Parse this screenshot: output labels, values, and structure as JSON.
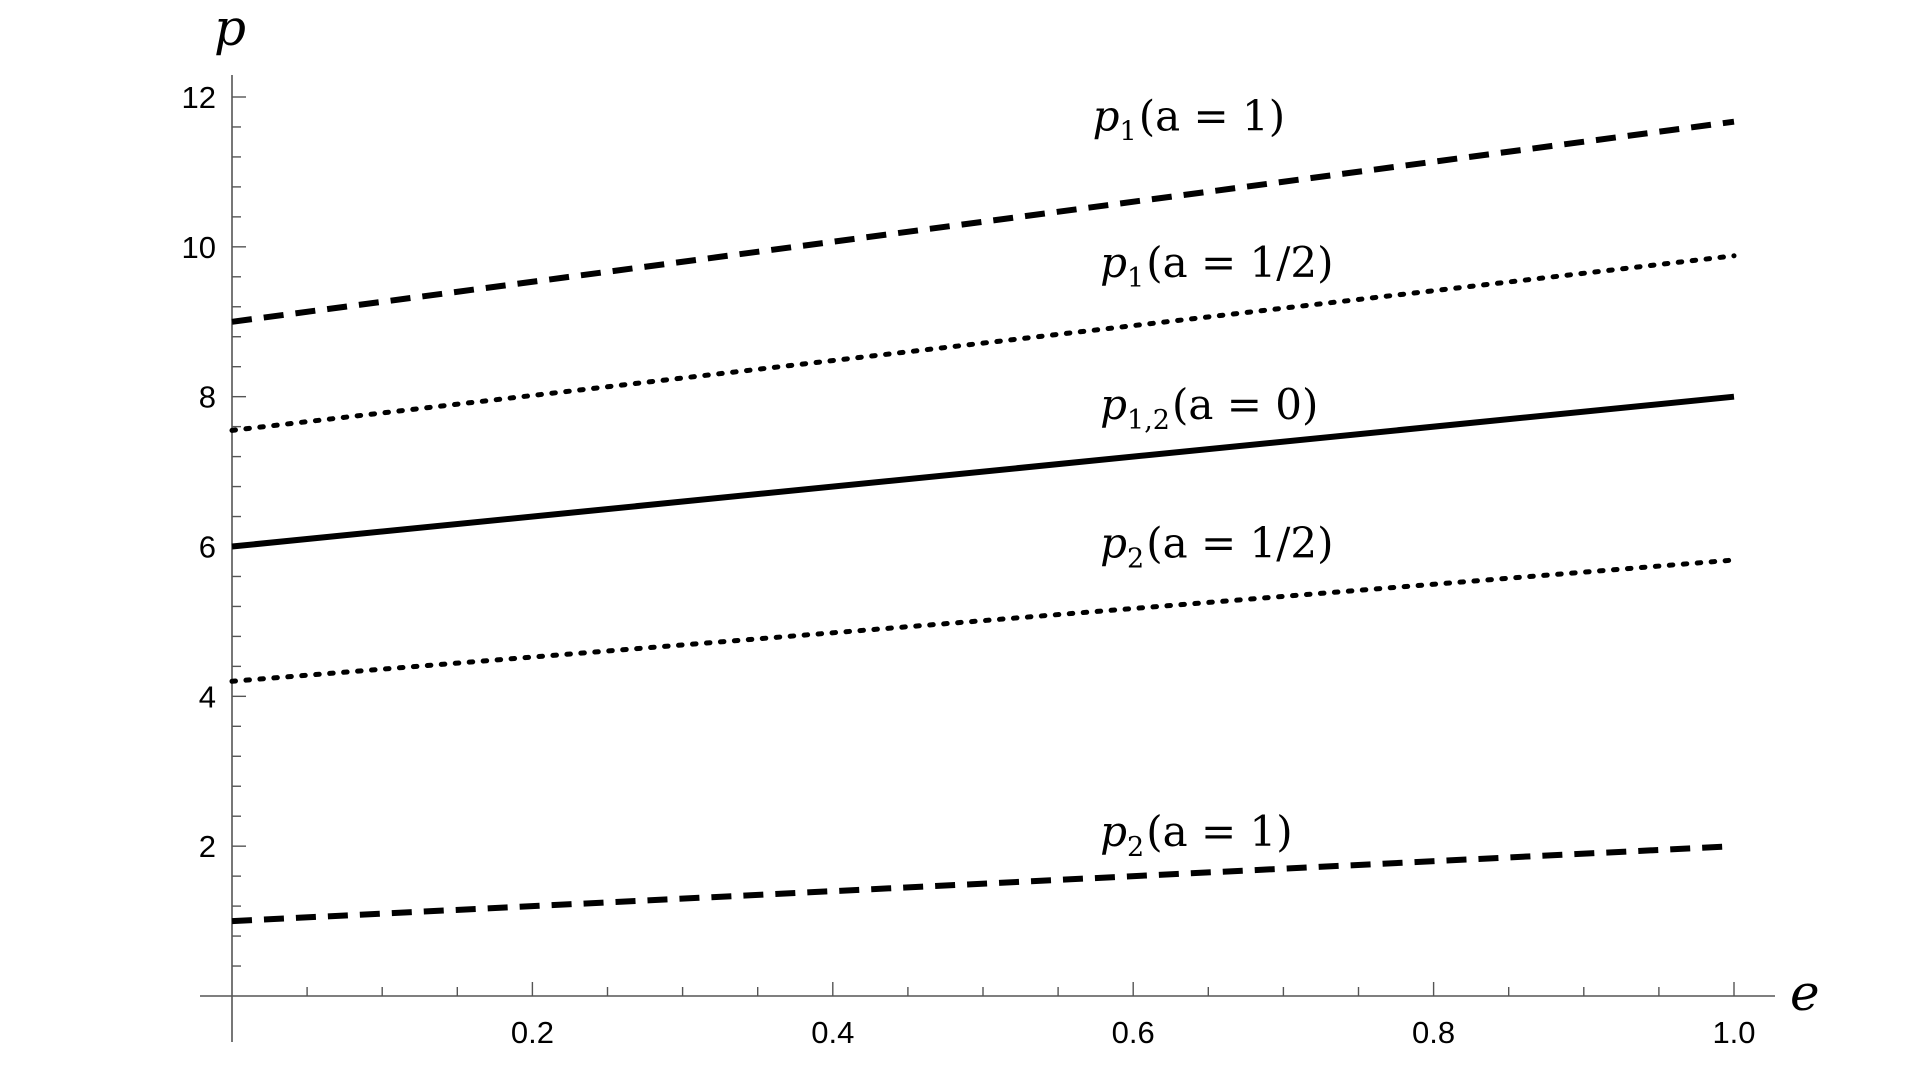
{
  "chart_data": {
    "type": "line",
    "title": "",
    "xlabel": "e",
    "ylabel": "p",
    "xlim": [
      0,
      1
    ],
    "ylim": [
      0,
      12.4
    ],
    "x_ticks": [
      {
        "value": 0.2,
        "label": "0.2"
      },
      {
        "value": 0.4,
        "label": "0.4"
      },
      {
        "value": 0.6,
        "label": "0.6"
      },
      {
        "value": 0.8,
        "label": "0.8"
      },
      {
        "value": 1.0,
        "label": "1.0"
      }
    ],
    "y_ticks": [
      {
        "value": 2,
        "label": "2"
      },
      {
        "value": 4,
        "label": "4"
      },
      {
        "value": 6,
        "label": "6"
      },
      {
        "value": 8,
        "label": "8"
      },
      {
        "value": 10,
        "label": "10"
      },
      {
        "value": 12,
        "label": "12"
      }
    ],
    "grid": false,
    "legend": "none",
    "series": [
      {
        "label_main": "p",
        "label_sub": "1",
        "label_rest": "(a = 1)",
        "style": "dashed",
        "color": "#000000",
        "x": [
          0,
          1
        ],
        "y": [
          9.0,
          11.67
        ],
        "label_anchor": {
          "x": 0.573,
          "y": 11.55
        }
      },
      {
        "label_main": "p",
        "label_sub": "1",
        "label_rest": "(a = 1/2)",
        "style": "dotted",
        "color": "#000000",
        "x": [
          0,
          1
        ],
        "y": [
          7.55,
          9.88
        ],
        "label_anchor": {
          "x": 0.578,
          "y": 9.6
        }
      },
      {
        "label_main": "p",
        "label_sub": "1,2",
        "label_rest": "(a = 0)",
        "style": "solid",
        "color": "#000000",
        "x": [
          0,
          1
        ],
        "y": [
          6.0,
          8.0
        ],
        "label_anchor": {
          "x": 0.578,
          "y": 7.7
        }
      },
      {
        "label_main": "p",
        "label_sub": "2",
        "label_rest": "(a = 1/2)",
        "style": "dotted",
        "color": "#000000",
        "x": [
          0,
          1
        ],
        "y": [
          4.2,
          5.82
        ],
        "label_anchor": {
          "x": 0.578,
          "y": 5.85
        }
      },
      {
        "label_main": "p",
        "label_sub": "2",
        "label_rest": "(a = 1)",
        "style": "dashed",
        "color": "#000000",
        "x": [
          0,
          1
        ],
        "y": [
          1.0,
          2.0
        ],
        "label_anchor": {
          "x": 0.578,
          "y": 2.0
        }
      }
    ]
  }
}
